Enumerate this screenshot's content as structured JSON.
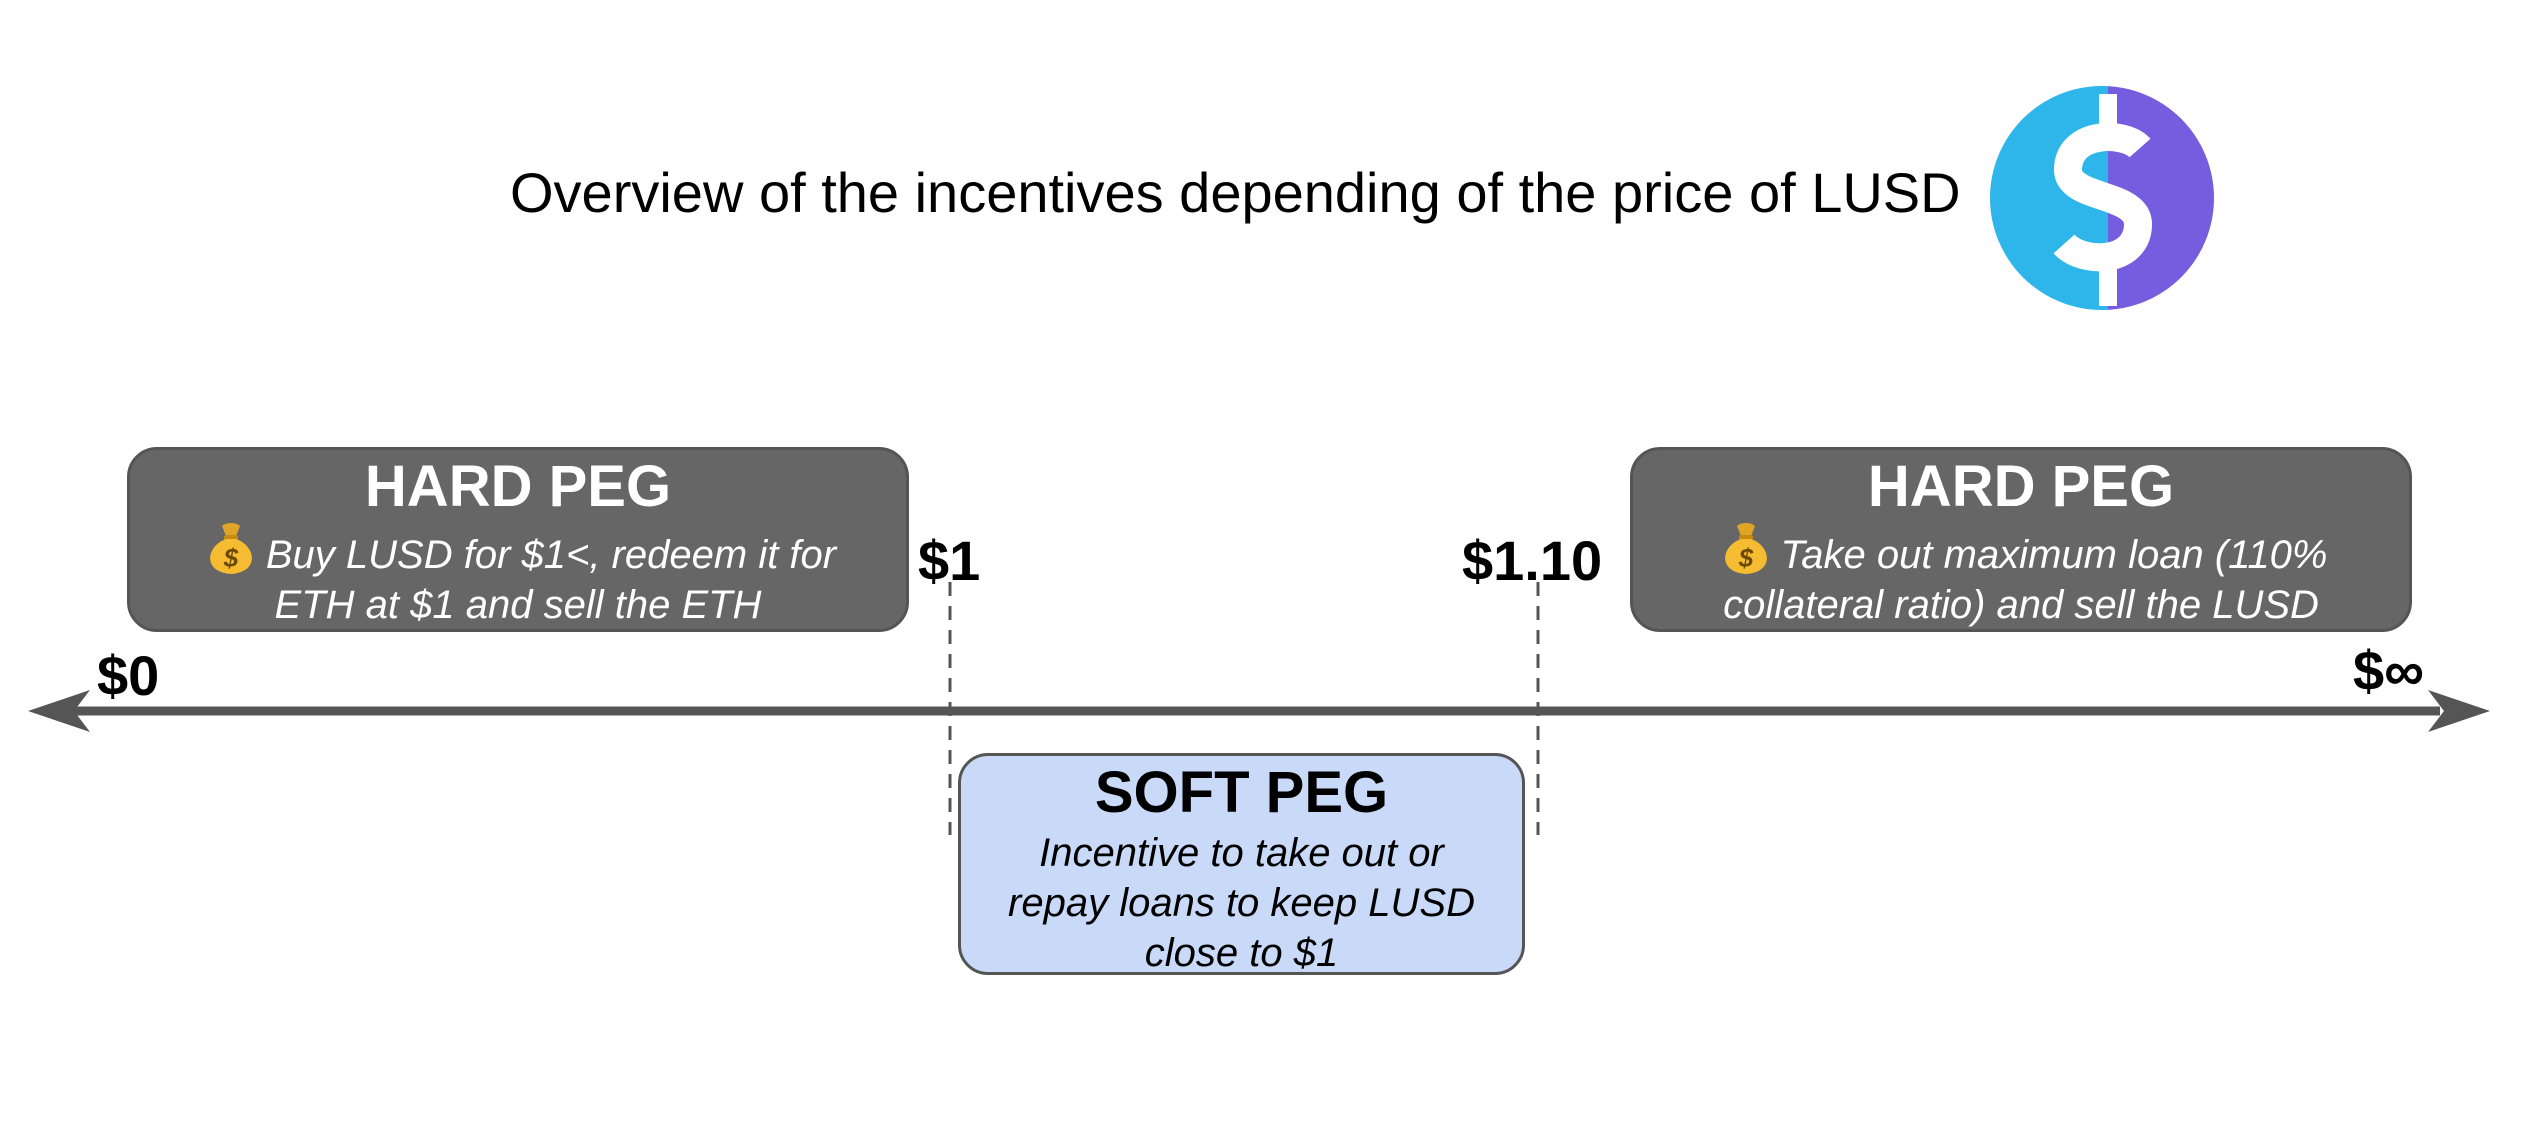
{
  "title": "Overview of the incentives depending of the price of LUSD",
  "colors": {
    "logo_left": "#2eb6ea",
    "logo_right": "#745ddf",
    "hard_peg_fill": "#666666",
    "soft_peg_fill": "#c9daf8",
    "axis": "#555555"
  },
  "icons": {
    "logo": "lusd-dollar-logo-icon",
    "bullet": "money-bag-icon"
  },
  "price_labels": {
    "zero": "$0",
    "one": "$1",
    "one_ten": "$1.10",
    "infinity": "$∞"
  },
  "hard_peg_left": {
    "title": "HARD PEG",
    "body_line1": "Buy LUSD for $1<, redeem it for",
    "body_line2": "ETH at $1 and sell the ETH"
  },
  "hard_peg_right": {
    "title": "HARD PEG",
    "body_line1": "Take out maximum loan (110%",
    "body_line2": "collateral ratio) and sell the LUSD"
  },
  "soft_peg": {
    "title": "SOFT PEG",
    "body_line1": "Incentive to take out or",
    "body_line2": "repay loans to keep LUSD",
    "body_line3": "close to $1"
  }
}
